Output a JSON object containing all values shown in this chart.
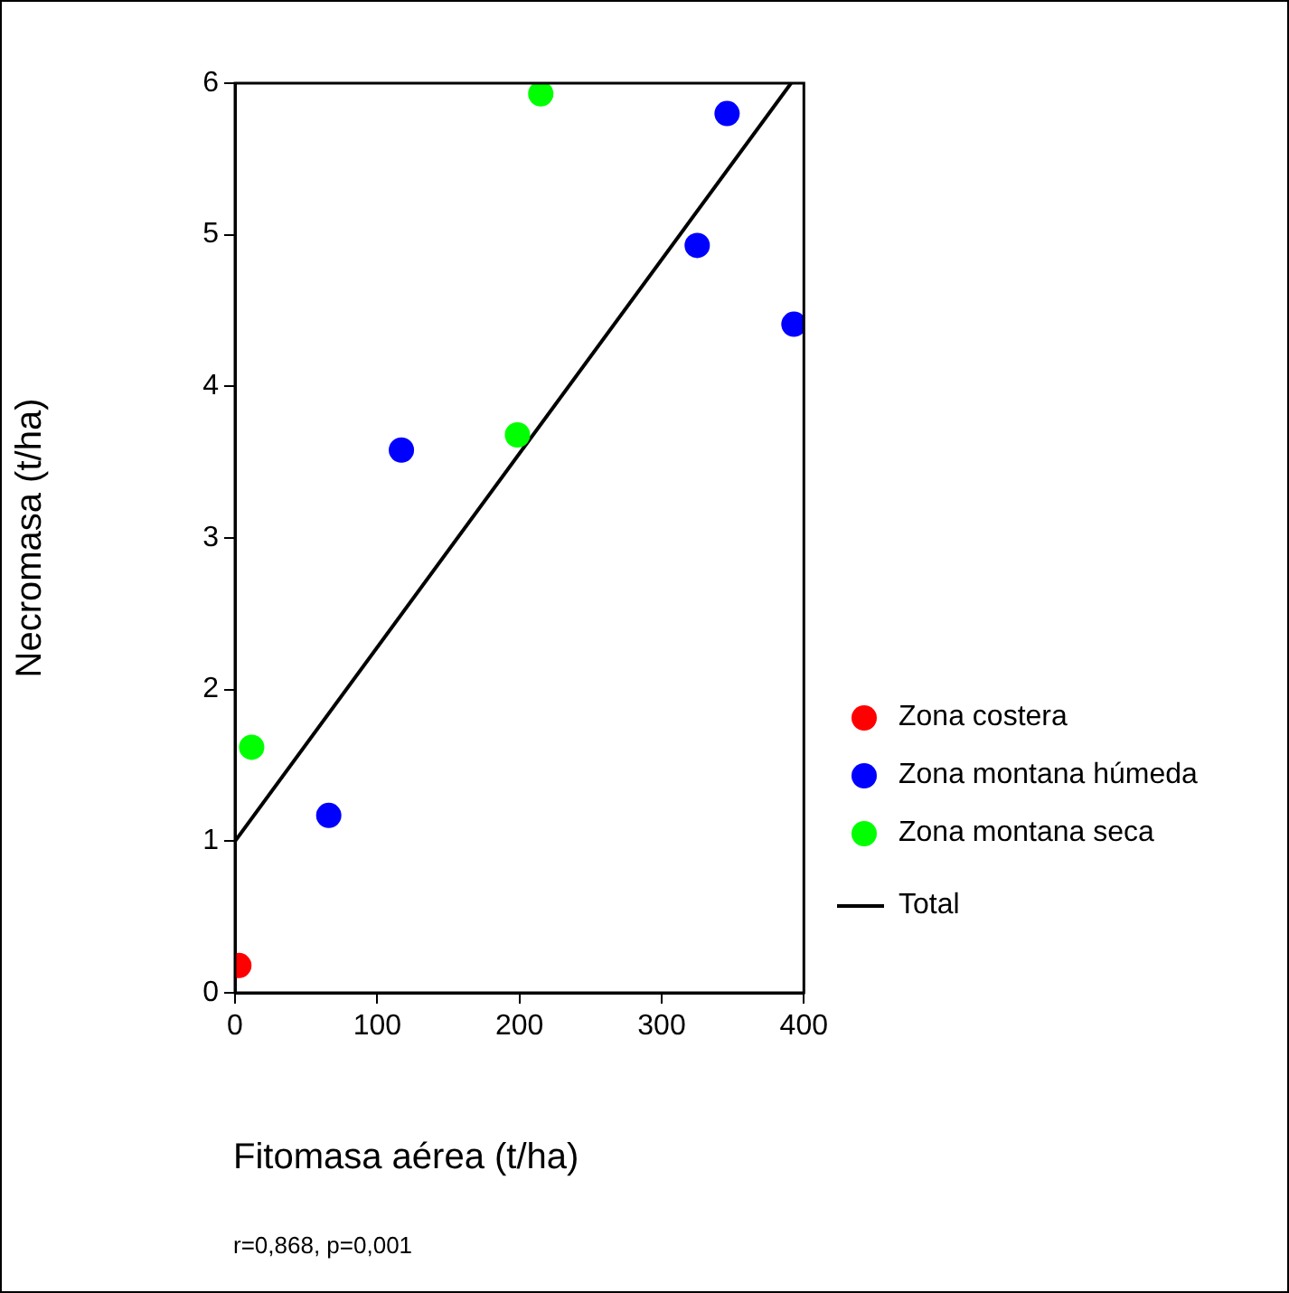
{
  "chart_data": {
    "type": "scatter",
    "xlabel": "Fitomasa aérea (t/ha)",
    "ylabel": "Necromasa (t/ha)",
    "xlim": [
      0,
      400
    ],
    "xticks": [
      0,
      100,
      200,
      300,
      400
    ],
    "ylim": [
      0,
      6
    ],
    "yticks": [
      0,
      1,
      2,
      3,
      4,
      5,
      6
    ],
    "grid": false,
    "legend": "right",
    "marker": "circle",
    "annotations": [
      "r=0,868, p=0,001"
    ],
    "series": [
      {
        "name": "Zona costera",
        "color": "#ff0000",
        "x": [
          2.7
        ],
        "values": [
          0.18
        ]
      },
      {
        "name": "Zona montana húmeda",
        "color": "#0000ff",
        "x": [
          65.9,
          117,
          325,
          346,
          393
        ],
        "values": [
          1.17,
          3.58,
          4.93,
          5.8,
          4.41
        ]
      },
      {
        "name": "Zona montana seca",
        "color": "#00ff00",
        "x": [
          11.7,
          198.6,
          215
        ],
        "values": [
          1.62,
          3.68,
          5.93
        ]
      },
      {
        "name": "Total",
        "type": "line",
        "color": "#000000",
        "marker": "none",
        "x": [
          0,
          391
        ],
        "values": [
          1,
          6
        ]
      }
    ]
  }
}
